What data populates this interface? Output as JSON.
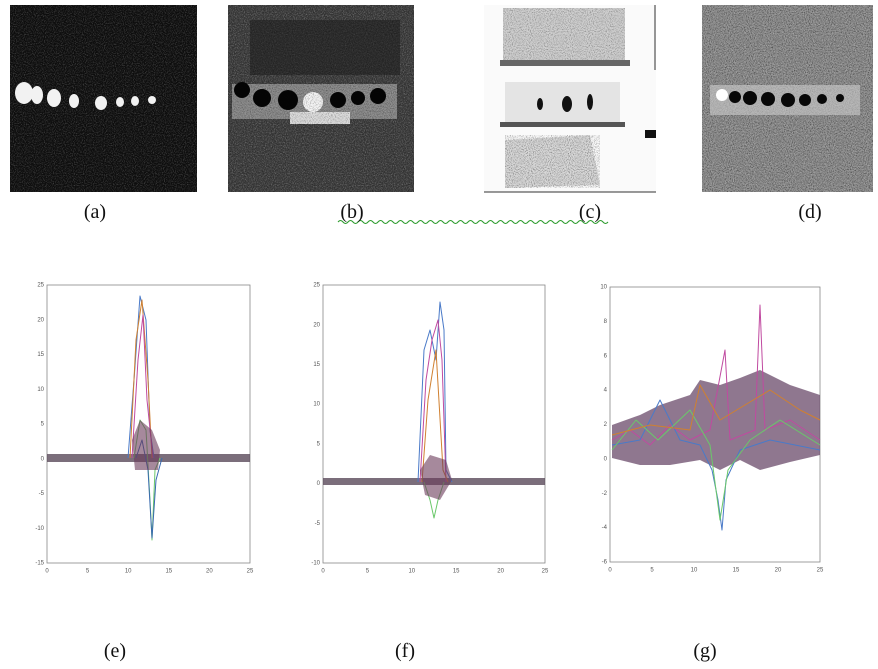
{
  "figure": {
    "images": [
      {
        "label": "(a)"
      },
      {
        "label": "(b)"
      },
      {
        "label": "(c)"
      },
      {
        "label": "(d)"
      }
    ],
    "plots": [
      {
        "label": "(e)",
        "yticks": [
          "25",
          "20",
          "15",
          "10",
          "5",
          "0",
          "-5",
          "-10",
          "-15"
        ],
        "xticks": [
          "0",
          "5",
          "10",
          "15",
          "20",
          "25"
        ]
      },
      {
        "label": "(f)",
        "yticks": [
          "25",
          "20",
          "15",
          "10",
          "5",
          "0",
          "-5",
          "-10"
        ],
        "xticks": [
          "0",
          "5",
          "10",
          "15",
          "20",
          "25"
        ]
      },
      {
        "label": "(g)",
        "yticks": [
          "10",
          "8",
          "6",
          "4",
          "2",
          "0",
          "-2",
          "-4",
          "-6"
        ],
        "xticks": [
          "0",
          "5",
          "10",
          "15",
          "20",
          "25"
        ]
      }
    ]
  }
}
